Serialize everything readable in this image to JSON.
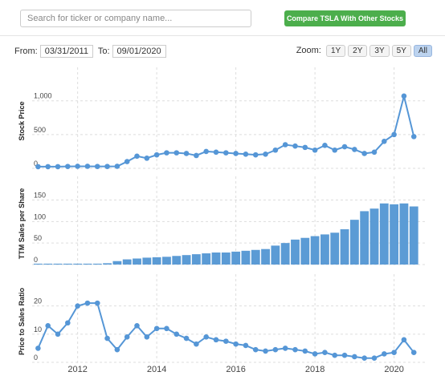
{
  "ui": {
    "search_placeholder": "Search for ticker or company name...",
    "compare_button": "Compare TSLA With Other Stocks",
    "from_label": "From:",
    "from_date": "03/31/2011",
    "to_label": "To:",
    "to_date": "09/01/2020",
    "zoom_label": "Zoom:",
    "zoom_buttons": [
      "1Y",
      "2Y",
      "3Y",
      "5Y",
      "All"
    ],
    "active_zoom": 4
  },
  "chart_data": [
    {
      "type": "line",
      "y_label": "Stock Price",
      "color": "#5596d6",
      "x": [
        2011,
        2011.25,
        2011.5,
        2011.75,
        2012,
        2012.25,
        2012.5,
        2012.75,
        2013,
        2013.25,
        2013.5,
        2013.75,
        2014,
        2014.25,
        2014.5,
        2014.75,
        2015,
        2015.25,
        2015.5,
        2015.75,
        2016,
        2016.25,
        2016.5,
        2016.75,
        2017,
        2017.25,
        2017.5,
        2017.75,
        2018,
        2018.25,
        2018.5,
        2018.75,
        2019,
        2019.25,
        2019.5,
        2019.75,
        2020,
        2020.25,
        2020.5
      ],
      "values": [
        25,
        25,
        25,
        28,
        30,
        30,
        28,
        28,
        30,
        100,
        180,
        150,
        200,
        230,
        230,
        220,
        190,
        250,
        240,
        230,
        220,
        210,
        200,
        210,
        270,
        350,
        330,
        310,
        270,
        340,
        270,
        320,
        280,
        220,
        240,
        400,
        500,
        1070,
        470
      ],
      "xlim": [
        2010.85,
        2020.8
      ],
      "ylim": [
        0,
        1400
      ],
      "yticks": [
        0,
        500,
        {
          "value": 1000,
          "label": "1,000"
        }
      ],
      "grid": true
    },
    {
      "type": "bar",
      "y_label": "TTM Sales per Share",
      "color": "#5b9bd5",
      "x": [
        2011,
        2011.25,
        2011.5,
        2011.75,
        2012,
        2012.25,
        2012.5,
        2012.75,
        2013,
        2013.25,
        2013.5,
        2013.75,
        2014,
        2014.25,
        2014.5,
        2014.75,
        2015,
        2015.25,
        2015.5,
        2015.75,
        2016,
        2016.25,
        2016.5,
        2016.75,
        2017,
        2017.25,
        2017.5,
        2017.75,
        2018,
        2018.25,
        2018.5,
        2018.75,
        2019,
        2019.25,
        2019.5,
        2019.75,
        2020,
        2020.25,
        2020.5
      ],
      "values": [
        2,
        2,
        2,
        2,
        2,
        2,
        2,
        3,
        8,
        12,
        14,
        16,
        17,
        18,
        20,
        22,
        24,
        26,
        28,
        28,
        30,
        32,
        34,
        36,
        44,
        50,
        58,
        62,
        66,
        70,
        74,
        82,
        104,
        124,
        130,
        142,
        140,
        142,
        135
      ],
      "xlim": [
        2010.85,
        2020.8
      ],
      "ylim": [
        0,
        190
      ],
      "yticks": [
        0,
        50,
        100,
        150
      ],
      "grid": true
    },
    {
      "type": "line",
      "y_label": "Price to Sales Ratio",
      "color": "#5596d6",
      "x": [
        2011,
        2011.25,
        2011.5,
        2011.75,
        2012,
        2012.25,
        2012.5,
        2012.75,
        2013,
        2013.25,
        2013.5,
        2013.75,
        2014,
        2014.25,
        2014.5,
        2014.75,
        2015,
        2015.25,
        2015.5,
        2015.75,
        2016,
        2016.25,
        2016.5,
        2016.75,
        2017,
        2017.25,
        2017.5,
        2017.75,
        2018,
        2018.25,
        2018.5,
        2018.75,
        2019,
        2019.25,
        2019.5,
        2019.75,
        2020,
        2020.25,
        2020.5
      ],
      "values": [
        5,
        13,
        10,
        14,
        20,
        21,
        21,
        8.5,
        4.5,
        9,
        13,
        9,
        12,
        12,
        10,
        8.5,
        6.5,
        9,
        8,
        7.5,
        6.5,
        6,
        4.5,
        4,
        4.5,
        5,
        4.5,
        4,
        3,
        3.5,
        2.5,
        2.5,
        2,
        1.5,
        1.5,
        3,
        3.5,
        8,
        3.5
      ],
      "xlim": [
        2010.85,
        2020.8
      ],
      "ylim": [
        0,
        29
      ],
      "yticks": [
        0,
        10,
        20
      ],
      "xticks": [
        2012,
        2014,
        2016,
        2018,
        2020
      ],
      "grid": true
    }
  ]
}
